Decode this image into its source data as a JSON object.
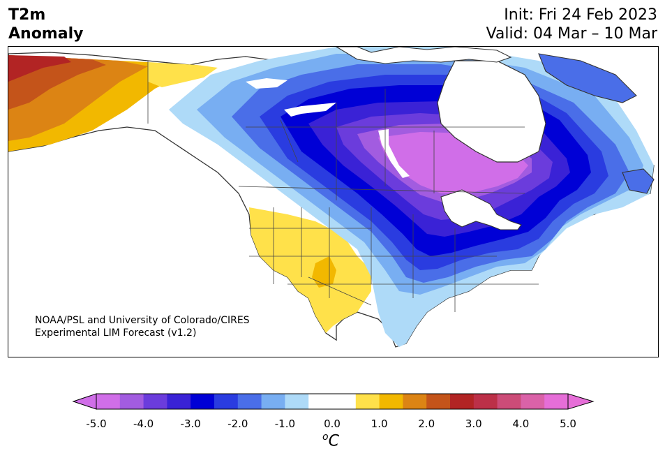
{
  "header": {
    "title_line1": "T2m",
    "title_line2": "Anomaly",
    "init": "Init: Fri 24 Feb 2023",
    "valid": "Valid: 04 Mar – 10 Mar"
  },
  "map": {
    "credit_line1": "NOAA/PSL and University of Colorado/CIRES",
    "credit_line2": "Experimental LIM Forecast (v1.2)",
    "region": "North America",
    "variable": "2-meter temperature anomaly"
  },
  "colorbar": {
    "unit_base": "C",
    "unit_sup": "o",
    "ticks": [
      "-5.0",
      "-4.0",
      "-3.0",
      "-2.0",
      "-1.0",
      "0.0",
      "1.0",
      "2.0",
      "3.0",
      "4.0",
      "5.0"
    ],
    "bins": [
      {
        "from": -5.0,
        "to": -4.5,
        "color": "#d06ee8"
      },
      {
        "from": -4.5,
        "to": -4.0,
        "color": "#a25ce0"
      },
      {
        "from": -4.0,
        "to": -3.5,
        "color": "#6b3cdc"
      },
      {
        "from": -3.5,
        "to": -3.0,
        "color": "#3a22d6"
      },
      {
        "from": -3.0,
        "to": -2.5,
        "color": "#0000d6"
      },
      {
        "from": -2.5,
        "to": -2.0,
        "color": "#2a3ce0"
      },
      {
        "from": -2.0,
        "to": -1.5,
        "color": "#4a6ee8"
      },
      {
        "from": -1.5,
        "to": -1.0,
        "color": "#78aef2"
      },
      {
        "from": -1.0,
        "to": -0.5,
        "color": "#aedaf8"
      },
      {
        "from": -0.5,
        "to": 0.0,
        "color": "#ffffff"
      },
      {
        "from": 0.0,
        "to": 0.5,
        "color": "#ffffff"
      },
      {
        "from": 0.5,
        "to": 1.0,
        "color": "#ffe14a"
      },
      {
        "from": 1.0,
        "to": 1.5,
        "color": "#f2b800"
      },
      {
        "from": 1.5,
        "to": 2.0,
        "color": "#dc8414"
      },
      {
        "from": 2.0,
        "to": 2.5,
        "color": "#c4541a"
      },
      {
        "from": 2.5,
        "to": 3.0,
        "color": "#b22424"
      },
      {
        "from": 3.0,
        "to": 3.5,
        "color": "#bc3048"
      },
      {
        "from": 3.5,
        "to": 4.0,
        "color": "#cc4c78"
      },
      {
        "from": 4.0,
        "to": 4.5,
        "color": "#da62a8"
      },
      {
        "from": 4.5,
        "to": 5.0,
        "color": "#e66ed8"
      }
    ],
    "extend_low_color": "#d06ee8",
    "extend_high_color": "#e66ed8"
  }
}
